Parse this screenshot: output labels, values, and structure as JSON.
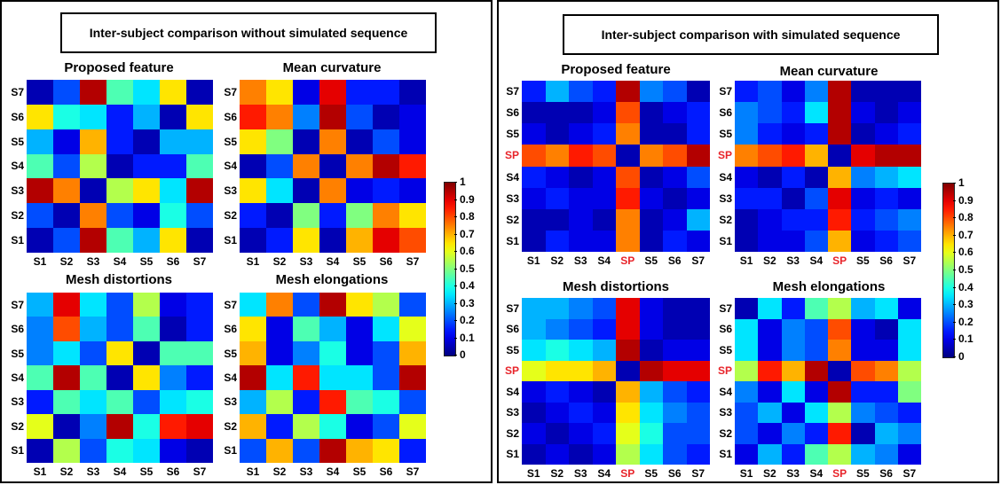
{
  "colors": {
    "panel_border": "#000000",
    "sp_label": "#e8242a"
  },
  "colormap": "jet",
  "left_panel": {
    "title": "Inter-subject comparison without simulated sequence",
    "charts": [
      {
        "title": "Proposed feature"
      },
      {
        "title": "Mean curvature"
      },
      {
        "title": "Mesh distortions"
      },
      {
        "title": "Mesh elongations"
      }
    ]
  },
  "right_panel": {
    "title": "Inter-subject comparison with simulated sequence",
    "charts": [
      {
        "title": "Proposed feature"
      },
      {
        "title": "Mean  curvature"
      },
      {
        "title": "Mesh distortions"
      },
      {
        "title": "Mesh elongations"
      }
    ]
  },
  "colorbar": {
    "ticks": [
      "1",
      "0.9",
      "0.8",
      "0.7",
      "0.6",
      "0.5",
      "0.4",
      "0.3",
      "0.2",
      "0.1",
      "0"
    ]
  },
  "chart_data": [
    {
      "type": "heatmap",
      "title": "Proposed feature",
      "panel": "Inter-subject comparison without simulated sequence",
      "x": [
        "S1",
        "S2",
        "S3",
        "S4",
        "S5",
        "S6",
        "S7"
      ],
      "y": [
        "S7",
        "S6",
        "S5",
        "S4",
        "S3",
        "S2",
        "S1"
      ],
      "values": [
        [
          0.05,
          0.2,
          0.95,
          0.45,
          0.35,
          0.65,
          0.05
        ],
        [
          0.65,
          0.4,
          0.35,
          0.15,
          0.3,
          0.05,
          0.65
        ],
        [
          0.3,
          0.1,
          0.7,
          0.15,
          0.05,
          0.3,
          0.3
        ],
        [
          0.45,
          0.2,
          0.55,
          0.05,
          0.15,
          0.15,
          0.45
        ],
        [
          0.95,
          0.75,
          0.05,
          0.55,
          0.65,
          0.35,
          0.95
        ],
        [
          0.2,
          0.05,
          0.75,
          0.2,
          0.1,
          0.4,
          0.2
        ],
        [
          0.05,
          0.2,
          0.95,
          0.45,
          0.3,
          0.65,
          0.05
        ]
      ],
      "zlim": [
        0,
        1
      ]
    },
    {
      "type": "heatmap",
      "title": "Mean curvature",
      "panel": "Inter-subject comparison without simulated sequence",
      "x": [
        "S1",
        "S2",
        "S3",
        "S4",
        "S5",
        "S6",
        "S7"
      ],
      "y": [
        "S7",
        "S6",
        "S5",
        "S4",
        "S3",
        "S2",
        "S1"
      ],
      "values": [
        [
          0.75,
          0.65,
          0.1,
          0.9,
          0.15,
          0.15,
          0.05
        ],
        [
          0.85,
          0.75,
          0.25,
          0.95,
          0.2,
          0.05,
          0.1
        ],
        [
          0.65,
          0.5,
          0.05,
          0.75,
          0.05,
          0.2,
          0.1
        ],
        [
          0.05,
          0.2,
          0.75,
          0.05,
          0.75,
          0.95,
          0.85
        ],
        [
          0.65,
          0.35,
          0.05,
          0.75,
          0.1,
          0.15,
          0.1
        ],
        [
          0.15,
          0.05,
          0.5,
          0.15,
          0.5,
          0.75,
          0.65
        ],
        [
          0.05,
          0.15,
          0.65,
          0.05,
          0.7,
          0.9,
          0.8
        ]
      ],
      "zlim": [
        0,
        1
      ]
    },
    {
      "type": "heatmap",
      "title": "Mesh distortions",
      "panel": "Inter-subject comparison without simulated sequence",
      "x": [
        "S1",
        "S2",
        "S3",
        "S4",
        "S5",
        "S6",
        "S7"
      ],
      "y": [
        "S7",
        "S6",
        "S5",
        "S4",
        "S3",
        "S2",
        "S1"
      ],
      "values": [
        [
          0.3,
          0.9,
          0.35,
          0.2,
          0.55,
          0.1,
          0.15
        ],
        [
          0.25,
          0.8,
          0.3,
          0.2,
          0.45,
          0.05,
          0.15
        ],
        [
          0.25,
          0.35,
          0.2,
          0.65,
          0.05,
          0.45,
          0.45
        ],
        [
          0.45,
          0.95,
          0.45,
          0.05,
          0.65,
          0.25,
          0.15
        ],
        [
          0.15,
          0.45,
          0.35,
          0.45,
          0.2,
          0.35,
          0.4
        ],
        [
          0.6,
          0.05,
          0.25,
          0.95,
          0.4,
          0.85,
          0.9
        ],
        [
          0.05,
          0.55,
          0.2,
          0.4,
          0.35,
          0.1,
          0.05
        ]
      ],
      "zlim": [
        0,
        1
      ]
    },
    {
      "type": "heatmap",
      "title": "Mesh elongations",
      "panel": "Inter-subject comparison without simulated sequence",
      "x": [
        "S1",
        "S2",
        "S3",
        "S4",
        "S5",
        "S6",
        "S7"
      ],
      "y": [
        "S7",
        "S6",
        "S5",
        "S4",
        "S3",
        "S2",
        "S1"
      ],
      "values": [
        [
          0.35,
          0.75,
          0.2,
          0.95,
          0.65,
          0.55,
          0.2
        ],
        [
          0.65,
          0.1,
          0.45,
          0.3,
          0.1,
          0.35,
          0.6
        ],
        [
          0.7,
          0.1,
          0.25,
          0.4,
          0.1,
          0.2,
          0.7
        ],
        [
          0.95,
          0.35,
          0.85,
          0.35,
          0.35,
          0.2,
          0.95
        ],
        [
          0.3,
          0.55,
          0.15,
          0.85,
          0.45,
          0.4,
          0.2
        ],
        [
          0.7,
          0.15,
          0.55,
          0.4,
          0.1,
          0.2,
          0.6
        ],
        [
          0.2,
          0.7,
          0.2,
          0.95,
          0.7,
          0.65,
          0.15
        ]
      ],
      "zlim": [
        0,
        1
      ]
    },
    {
      "type": "heatmap",
      "title": "Proposed feature",
      "panel": "Inter-subject comparison with simulated sequence",
      "x": [
        "S1",
        "S2",
        "S3",
        "S4",
        "SP",
        "S5",
        "S6",
        "S7"
      ],
      "y": [
        "S7",
        "S6",
        "S5",
        "SP",
        "S4",
        "S3",
        "S2",
        "S1"
      ],
      "values": [
        [
          0.15,
          0.3,
          0.2,
          0.15,
          0.95,
          0.25,
          0.2,
          0.05
        ],
        [
          0.05,
          0.05,
          0.05,
          0.1,
          0.8,
          0.05,
          0.1,
          0.15
        ],
        [
          0.1,
          0.05,
          0.1,
          0.15,
          0.75,
          0.05,
          0.05,
          0.15
        ],
        [
          0.8,
          0.75,
          0.85,
          0.8,
          0.05,
          0.75,
          0.8,
          0.95
        ],
        [
          0.15,
          0.1,
          0.05,
          0.1,
          0.8,
          0.05,
          0.1,
          0.2
        ],
        [
          0.1,
          0.15,
          0.1,
          0.1,
          0.85,
          0.1,
          0.05,
          0.1
        ],
        [
          0.05,
          0.05,
          0.1,
          0.05,
          0.75,
          0.05,
          0.1,
          0.3
        ],
        [
          0.05,
          0.15,
          0.1,
          0.1,
          0.75,
          0.05,
          0.15,
          0.1
        ]
      ],
      "zlim": [
        0,
        1
      ]
    },
    {
      "type": "heatmap",
      "title": "Mean  curvature",
      "panel": "Inter-subject comparison with simulated sequence",
      "x": [
        "S1",
        "S2",
        "S3",
        "S4",
        "SP",
        "S5",
        "S6",
        "S7"
      ],
      "y": [
        "S7",
        "S6",
        "S5",
        "SP",
        "S4",
        "S3",
        "S2",
        "S1"
      ],
      "values": [
        [
          0.15,
          0.2,
          0.1,
          0.25,
          0.95,
          0.05,
          0.05,
          0.05
        ],
        [
          0.25,
          0.2,
          0.15,
          0.35,
          0.95,
          0.1,
          0.05,
          0.1
        ],
        [
          0.25,
          0.15,
          0.1,
          0.15,
          0.95,
          0.05,
          0.1,
          0.15
        ],
        [
          0.75,
          0.8,
          0.85,
          0.7,
          0.05,
          0.9,
          0.95,
          0.95
        ],
        [
          0.1,
          0.05,
          0.15,
          0.05,
          0.7,
          0.25,
          0.3,
          0.35
        ],
        [
          0.15,
          0.15,
          0.05,
          0.2,
          0.9,
          0.1,
          0.15,
          0.1
        ],
        [
          0.05,
          0.1,
          0.15,
          0.15,
          0.85,
          0.15,
          0.2,
          0.25
        ],
        [
          0.05,
          0.1,
          0.1,
          0.2,
          0.7,
          0.1,
          0.15,
          0.2
        ]
      ],
      "zlim": [
        0,
        1
      ]
    },
    {
      "type": "heatmap",
      "title": "Mesh distortions",
      "panel": "Inter-subject comparison with simulated sequence",
      "x": [
        "S1",
        "S2",
        "S3",
        "S4",
        "SP",
        "S5",
        "S6",
        "S7"
      ],
      "y": [
        "S7",
        "S6",
        "S5",
        "SP",
        "S4",
        "S3",
        "S2",
        "S1"
      ],
      "values": [
        [
          0.3,
          0.3,
          0.25,
          0.2,
          0.9,
          0.1,
          0.05,
          0.05
        ],
        [
          0.3,
          0.25,
          0.2,
          0.15,
          0.9,
          0.1,
          0.05,
          0.05
        ],
        [
          0.35,
          0.4,
          0.35,
          0.3,
          0.95,
          0.05,
          0.1,
          0.1
        ],
        [
          0.6,
          0.65,
          0.65,
          0.7,
          0.05,
          0.95,
          0.9,
          0.9
        ],
        [
          0.1,
          0.15,
          0.1,
          0.05,
          0.7,
          0.3,
          0.2,
          0.15
        ],
        [
          0.05,
          0.1,
          0.15,
          0.1,
          0.65,
          0.35,
          0.25,
          0.2
        ],
        [
          0.1,
          0.05,
          0.1,
          0.15,
          0.6,
          0.4,
          0.2,
          0.2
        ],
        [
          0.05,
          0.1,
          0.05,
          0.1,
          0.55,
          0.35,
          0.2,
          0.15
        ]
      ],
      "zlim": [
        0,
        1
      ]
    },
    {
      "type": "heatmap",
      "title": "Mesh elongations",
      "panel": "Inter-subject comparison with simulated sequence",
      "x": [
        "S1",
        "S2",
        "S3",
        "S4",
        "SP",
        "S5",
        "S6",
        "S7"
      ],
      "y": [
        "S7",
        "S6",
        "S5",
        "SP",
        "S4",
        "S3",
        "S2",
        "S1"
      ],
      "values": [
        [
          0.05,
          0.35,
          0.15,
          0.45,
          0.55,
          0.3,
          0.35,
          0.1
        ],
        [
          0.35,
          0.1,
          0.25,
          0.2,
          0.8,
          0.1,
          0.05,
          0.35
        ],
        [
          0.35,
          0.1,
          0.25,
          0.2,
          0.75,
          0.1,
          0.1,
          0.35
        ],
        [
          0.55,
          0.85,
          0.7,
          0.95,
          0.05,
          0.8,
          0.75,
          0.55
        ],
        [
          0.25,
          0.1,
          0.35,
          0.1,
          0.95,
          0.15,
          0.15,
          0.5
        ],
        [
          0.2,
          0.3,
          0.1,
          0.35,
          0.55,
          0.25,
          0.2,
          0.15
        ],
        [
          0.2,
          0.1,
          0.25,
          0.15,
          0.85,
          0.05,
          0.3,
          0.25
        ],
        [
          0.1,
          0.3,
          0.15,
          0.45,
          0.55,
          0.3,
          0.25,
          0.1
        ]
      ],
      "zlim": [
        0,
        1
      ]
    }
  ]
}
